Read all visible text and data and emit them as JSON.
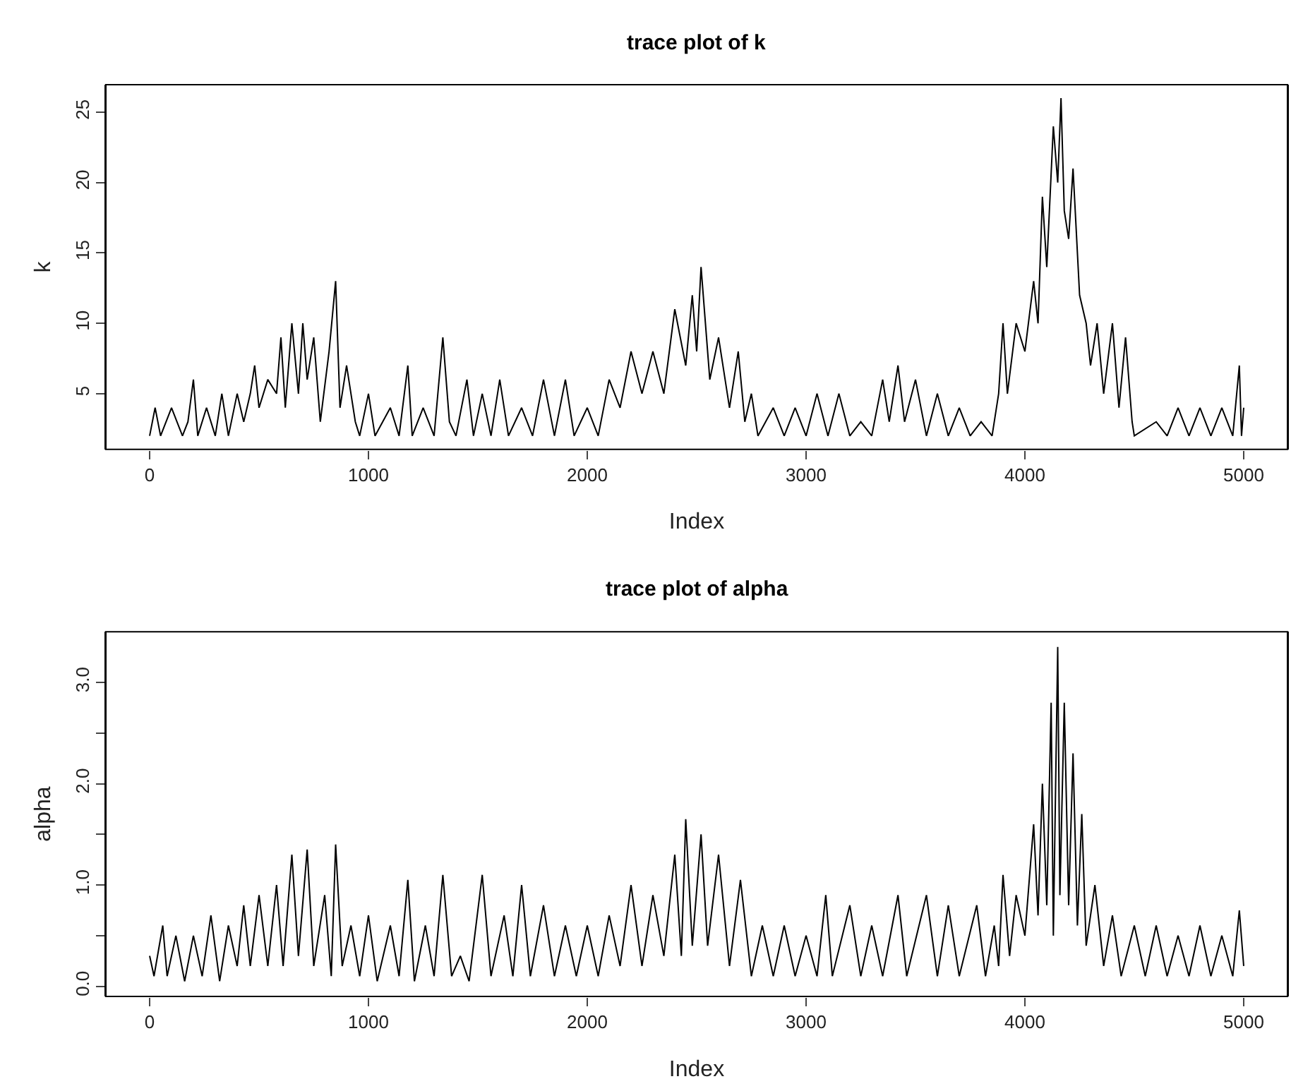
{
  "chart_data": [
    {
      "type": "line",
      "title": "trace plot of k",
      "xlabel": "Index",
      "ylabel": "k",
      "xlim": [
        -200,
        5200
      ],
      "xticks": [
        0,
        1000,
        2000,
        3000,
        4000,
        5000
      ],
      "ylim": [
        1.04,
        26.96
      ],
      "yticks": [
        5,
        10,
        15,
        20,
        25
      ],
      "marker": "none",
      "line_style": "solid",
      "series": [
        {
          "color": "#000000",
          "x": [
            0,
            25,
            50,
            100,
            150,
            175,
            200,
            220,
            260,
            300,
            330,
            360,
            400,
            430,
            460,
            480,
            500,
            540,
            580,
            600,
            620,
            650,
            680,
            700,
            720,
            750,
            780,
            820,
            850,
            870,
            900,
            940,
            960,
            1000,
            1030,
            1100,
            1140,
            1180,
            1200,
            1250,
            1300,
            1340,
            1370,
            1400,
            1450,
            1480,
            1520,
            1560,
            1600,
            1640,
            1700,
            1750,
            1800,
            1850,
            1900,
            1940,
            2000,
            2050,
            2100,
            2150,
            2200,
            2250,
            2300,
            2350,
            2400,
            2450,
            2480,
            2500,
            2520,
            2560,
            2600,
            2650,
            2690,
            2720,
            2750,
            2780,
            2850,
            2900,
            2950,
            3000,
            3050,
            3100,
            3150,
            3200,
            3250,
            3300,
            3350,
            3380,
            3420,
            3450,
            3500,
            3550,
            3600,
            3650,
            3700,
            3750,
            3800,
            3850,
            3880,
            3900,
            3920,
            3960,
            4000,
            4040,
            4060,
            4080,
            4100,
            4130,
            4150,
            4165,
            4180,
            4200,
            4220,
            4250,
            4280,
            4300,
            4330,
            4360,
            4400,
            4430,
            4460,
            4490,
            4500,
            4600,
            4650,
            4700,
            4750,
            4800,
            4850,
            4900,
            4950,
            4980,
            4990,
            5000
          ],
          "values": [
            2,
            4,
            2,
            4,
            2,
            3,
            6,
            2,
            4,
            2,
            5,
            2,
            5,
            3,
            5,
            7,
            4,
            6,
            5,
            9,
            4,
            10,
            5,
            10,
            6,
            9,
            3,
            8,
            13,
            4,
            7,
            3,
            2,
            5,
            2,
            4,
            2,
            7,
            2,
            4,
            2,
            9,
            3,
            2,
            6,
            2,
            5,
            2,
            6,
            2,
            4,
            2,
            6,
            2,
            6,
            2,
            4,
            2,
            6,
            4,
            8,
            5,
            8,
            5,
            11,
            7,
            12,
            8,
            14,
            6,
            9,
            4,
            8,
            3,
            5,
            2,
            4,
            2,
            4,
            2,
            5,
            2,
            5,
            2,
            3,
            2,
            6,
            3,
            7,
            3,
            6,
            2,
            5,
            2,
            4,
            2,
            3,
            2,
            5,
            10,
            5,
            10,
            8,
            13,
            10,
            19,
            14,
            24,
            20,
            26,
            18,
            16,
            21,
            12,
            10,
            7,
            10,
            5,
            10,
            4,
            9,
            3,
            2,
            3,
            2,
            4,
            2,
            4,
            2,
            4,
            2,
            7,
            2,
            4
          ]
        }
      ]
    },
    {
      "type": "line",
      "title": "trace plot of alpha",
      "xlabel": "Index",
      "ylabel": "alpha",
      "xlim": [
        -200,
        5200
      ],
      "xticks": [
        0,
        1000,
        2000,
        3000,
        4000,
        5000
      ],
      "ylim": [
        -0.1,
        3.5
      ],
      "yticks": [
        {
          "value": 0,
          "label": "0.0"
        },
        {
          "value": 0.5,
          "label": null
        },
        {
          "value": 1,
          "label": "1.0"
        },
        {
          "value": 1.5,
          "label": null
        },
        {
          "value": 2,
          "label": "2.0"
        },
        {
          "value": 2.5,
          "label": null
        },
        {
          "value": 3,
          "label": "3.0"
        }
      ],
      "marker": "none",
      "line_style": "solid",
      "series": [
        {
          "color": "#000000",
          "x": [
            0,
            20,
            60,
            80,
            120,
            160,
            200,
            240,
            280,
            320,
            360,
            400,
            430,
            460,
            500,
            540,
            580,
            610,
            650,
            680,
            720,
            750,
            800,
            830,
            850,
            880,
            920,
            960,
            1000,
            1040,
            1100,
            1140,
            1180,
            1210,
            1260,
            1300,
            1340,
            1380,
            1420,
            1460,
            1520,
            1560,
            1620,
            1660,
            1700,
            1740,
            1800,
            1850,
            1900,
            1950,
            2000,
            2050,
            2100,
            2150,
            2200,
            2250,
            2300,
            2350,
            2400,
            2430,
            2450,
            2480,
            2520,
            2550,
            2600,
            2650,
            2700,
            2750,
            2800,
            2850,
            2900,
            2950,
            3000,
            3050,
            3090,
            3120,
            3200,
            3250,
            3300,
            3350,
            3420,
            3460,
            3550,
            3600,
            3650,
            3700,
            3780,
            3820,
            3860,
            3880,
            3900,
            3930,
            3960,
            4000,
            4040,
            4060,
            4080,
            4100,
            4120,
            4130,
            4150,
            4160,
            4180,
            4200,
            4220,
            4240,
            4260,
            4280,
            4320,
            4360,
            4400,
            4440,
            4500,
            4550,
            4600,
            4650,
            4700,
            4750,
            4800,
            4850,
            4900,
            4950,
            4980,
            5000
          ],
          "values": [
            0.3,
            0.1,
            0.6,
            0.1,
            0.5,
            0.05,
            0.5,
            0.1,
            0.7,
            0.05,
            0.6,
            0.2,
            0.8,
            0.2,
            0.9,
            0.2,
            1.0,
            0.2,
            1.3,
            0.3,
            1.35,
            0.2,
            0.9,
            0.1,
            1.4,
            0.2,
            0.6,
            0.1,
            0.7,
            0.05,
            0.6,
            0.1,
            1.05,
            0.05,
            0.6,
            0.1,
            1.1,
            0.1,
            0.3,
            0.05,
            1.1,
            0.1,
            0.7,
            0.1,
            1.0,
            0.1,
            0.8,
            0.1,
            0.6,
            0.1,
            0.6,
            0.1,
            0.7,
            0.2,
            1.0,
            0.2,
            0.9,
            0.3,
            1.3,
            0.3,
            1.65,
            0.4,
            1.5,
            0.4,
            1.3,
            0.2,
            1.05,
            0.1,
            0.6,
            0.1,
            0.6,
            0.1,
            0.5,
            0.1,
            0.9,
            0.1,
            0.8,
            0.1,
            0.6,
            0.1,
            0.9,
            0.1,
            0.9,
            0.1,
            0.8,
            0.1,
            0.8,
            0.1,
            0.6,
            0.2,
            1.1,
            0.3,
            0.9,
            0.5,
            1.6,
            0.7,
            2.0,
            0.8,
            2.8,
            0.5,
            3.35,
            0.9,
            2.8,
            0.8,
            2.3,
            0.6,
            1.7,
            0.4,
            1.0,
            0.2,
            0.7,
            0.1,
            0.6,
            0.1,
            0.6,
            0.1,
            0.5,
            0.1,
            0.6,
            0.1,
            0.5,
            0.1,
            0.75,
            0.2
          ]
        }
      ]
    }
  ]
}
